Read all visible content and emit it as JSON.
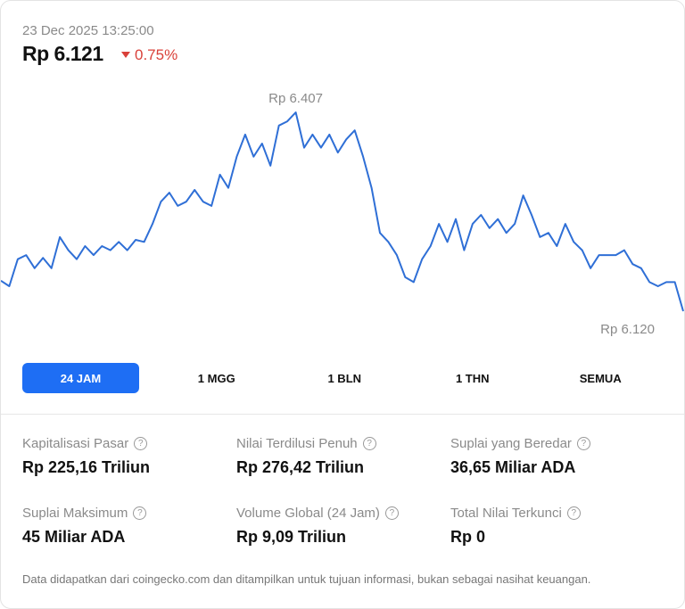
{
  "header": {
    "timestamp": "23 Dec 2025 13:25:00",
    "price": "Rp 6.121",
    "change": "0.75%"
  },
  "chart_data": {
    "type": "line",
    "color": "#2f6fd6",
    "max_label": "Rp 6.407",
    "min_label": "Rp 6.120",
    "values": [
      6164,
      6156,
      6195,
      6201,
      6182,
      6197,
      6182,
      6227,
      6208,
      6195,
      6214,
      6201,
      6214,
      6208,
      6220,
      6208,
      6223,
      6220,
      6246,
      6278,
      6291,
      6272,
      6278,
      6295,
      6278,
      6272,
      6317,
      6298,
      6343,
      6375,
      6343,
      6362,
      6330,
      6388,
      6394,
      6407,
      6356,
      6375,
      6356,
      6375,
      6349,
      6368,
      6381,
      6343,
      6298,
      6233,
      6220,
      6201,
      6169,
      6162,
      6195,
      6214,
      6246,
      6220,
      6253,
      6208,
      6246,
      6259,
      6240,
      6253,
      6233,
      6246,
      6287,
      6259,
      6227,
      6233,
      6214,
      6246,
      6220,
      6208,
      6182,
      6201,
      6201,
      6201,
      6208,
      6188,
      6182,
      6162,
      6156,
      6162,
      6162,
      6120
    ]
  },
  "tabs": [
    "24 JAM",
    "1 MGG",
    "1 BLN",
    "1 THN",
    "SEMUA"
  ],
  "stats": [
    {
      "label": "Kapitalisasi Pasar",
      "value": "Rp 225,16 Triliun"
    },
    {
      "label": "Nilai Terdilusi Penuh",
      "value": "Rp 276,42 Triliun"
    },
    {
      "label": "Suplai yang Beredar",
      "value": "36,65 Miliar ADA"
    },
    {
      "label": "Suplai Maksimum",
      "value": "45 Miliar ADA"
    },
    {
      "label": "Volume Global (24 Jam)",
      "value": "Rp 9,09 Triliun"
    },
    {
      "label": "Total Nilai Terkunci",
      "value": "Rp 0"
    }
  ],
  "footer": "Data didapatkan dari coingecko.com dan ditampilkan untuk tujuan informasi, bukan sebagai nasihat keuangan."
}
